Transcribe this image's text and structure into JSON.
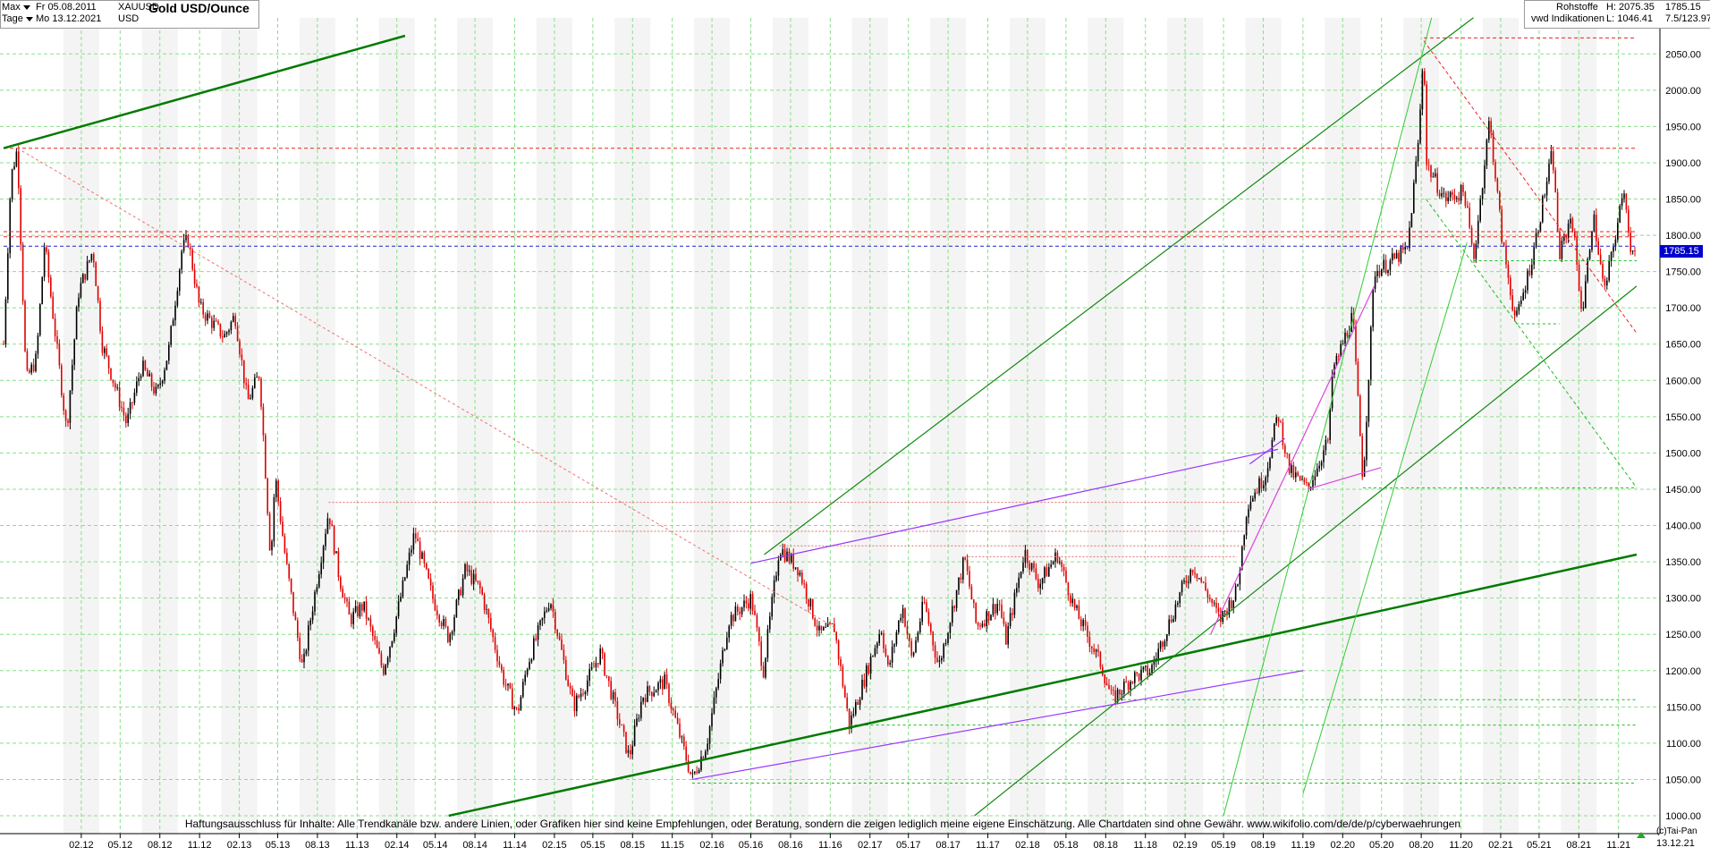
{
  "header": {
    "range_label": "Max",
    "range_from": "Fr 05.08.2011",
    "period_label": "Tage",
    "range_to": "Mo 13.12.2021",
    "symbol": "XAUUSD",
    "currency": "USD",
    "title": "Gold USD/Ounce",
    "category": "Rohstoffe",
    "source": "vwd Indikationen",
    "high": "H: 2075.35",
    "low": "L: 1046.41",
    "last": "1785.15",
    "scale_info": "7.5/123.97",
    "last_tag": "1785.15",
    "end_date": "13.12.21",
    "copyright": "(c)Tai-Pan"
  },
  "disclaimer": "Haftungsausschluss für Inhalte: Alle Trendkanäle bzw. andere Linien, oder Grafiken hier sind keine Empfehlungen, oder Beratung, sondern die zeigen lediglich meine eigene Einschätzung. Alle Chartdaten sind ohne Gewähr.  www.wikifolio.com/de/de/p/cyberwaehrungen",
  "colors": {
    "up_candle": "#000000",
    "down_candle": "#e00000",
    "thick_trendline": "#007a00",
    "thin_trendline": "#118811",
    "light_trendline": "#33cc33",
    "purple": "#9933ff",
    "magenta": "#dd44dd",
    "red_dashed": "#ee2222",
    "blue_dashed": "#2222cc",
    "green_dashed": "#22bb22",
    "grid": "#88e088",
    "band": "#f4f4f4"
  },
  "chart_data": {
    "type": "candlestick",
    "title": "Gold USD/Ounce",
    "ylim": [
      1000,
      2080
    ],
    "y_ticks": [
      "1000.00",
      "1050.00",
      "1100.00",
      "1150.00",
      "1200.00",
      "1250.00",
      "1300.00",
      "1350.00",
      "1400.00",
      "1450.00",
      "1500.00",
      "1550.00",
      "1600.00",
      "1650.00",
      "1700.00",
      "1750.00",
      "1800.00",
      "1850.00",
      "1900.00",
      "1950.00",
      "2000.00",
      "2050.00"
    ],
    "x_ticks": [
      "02.12",
      "05.12",
      "08.12",
      "11.12",
      "02.13",
      "05.13",
      "08.13",
      "11.13",
      "02.14",
      "05.14",
      "08.14",
      "11.14",
      "02.15",
      "05.15",
      "08.15",
      "11.15",
      "02.16",
      "05.16",
      "08.16",
      "11.16",
      "02.17",
      "05.17",
      "08.17",
      "11.17",
      "02.18",
      "05.18",
      "08.18",
      "11.18",
      "02.19",
      "05.19",
      "08.19",
      "11.19",
      "02.20",
      "05.20",
      "08.20",
      "11.20",
      "02.21",
      "05.21",
      "08.21",
      "11.21"
    ],
    "x_tick_dates": [
      "2012-02",
      "2012-05",
      "2012-08",
      "2012-11",
      "2013-02",
      "2013-05",
      "2013-08",
      "2013-11",
      "2014-02",
      "2014-05",
      "2014-08",
      "2014-11",
      "2015-02",
      "2015-05",
      "2015-08",
      "2015-11",
      "2016-02",
      "2016-05",
      "2016-08",
      "2016-11",
      "2017-02",
      "2017-05",
      "2017-08",
      "2017-11",
      "2018-02",
      "2018-05",
      "2018-08",
      "2018-11",
      "2019-02",
      "2019-05",
      "2019-08",
      "2019-11",
      "2020-02",
      "2020-05",
      "2020-08",
      "2020-11",
      "2021-02",
      "2021-05",
      "2021-08",
      "2021-11"
    ],
    "date_range": [
      "2011-08-05",
      "2021-12-13"
    ],
    "price_path": [
      [
        "2011-08-05",
        1650
      ],
      [
        "2011-08-22",
        1880
      ],
      [
        "2011-09-06",
        1920
      ],
      [
        "2011-09-26",
        1600
      ],
      [
        "2011-10-20",
        1630
      ],
      [
        "2011-11-08",
        1790
      ],
      [
        "2011-12-29",
        1530
      ],
      [
        "2012-01-25",
        1720
      ],
      [
        "2012-02-28",
        1780
      ],
      [
        "2012-03-20",
        1650
      ],
      [
        "2012-05-16",
        1540
      ],
      [
        "2012-06-20",
        1620
      ],
      [
        "2012-07-25",
        1580
      ],
      [
        "2012-08-21",
        1640
      ],
      [
        "2012-09-21",
        1780
      ],
      [
        "2012-10-05",
        1795
      ],
      [
        "2012-11-01",
        1700
      ],
      [
        "2012-12-28",
        1660
      ],
      [
        "2013-01-22",
        1690
      ],
      [
        "2013-02-20",
        1570
      ],
      [
        "2013-03-20",
        1610
      ],
      [
        "2013-04-15",
        1350
      ],
      [
        "2013-04-25",
        1470
      ],
      [
        "2013-05-20",
        1350
      ],
      [
        "2013-06-28",
        1200
      ],
      [
        "2013-07-10",
        1250
      ],
      [
        "2013-08-27",
        1420
      ],
      [
        "2013-09-20",
        1330
      ],
      [
        "2013-10-15",
        1270
      ],
      [
        "2013-11-15",
        1290
      ],
      [
        "2013-12-31",
        1200
      ],
      [
        "2014-01-22",
        1250
      ],
      [
        "2014-03-14",
        1390
      ],
      [
        "2014-04-25",
        1300
      ],
      [
        "2014-06-01",
        1245
      ],
      [
        "2014-07-10",
        1340
      ],
      [
        "2014-08-15",
        1310
      ],
      [
        "2014-10-05",
        1190
      ],
      [
        "2014-11-07",
        1140
      ],
      [
        "2014-12-01",
        1210
      ],
      [
        "2015-01-22",
        1300
      ],
      [
        "2015-03-17",
        1150
      ],
      [
        "2015-04-30",
        1200
      ],
      [
        "2015-05-18",
        1225
      ],
      [
        "2015-07-24",
        1080
      ],
      [
        "2015-08-24",
        1165
      ],
      [
        "2015-10-14",
        1185
      ],
      [
        "2015-12-17",
        1050
      ],
      [
        "2016-01-20",
        1100
      ],
      [
        "2016-03-11",
        1270
      ],
      [
        "2016-05-02",
        1300
      ],
      [
        "2016-05-30",
        1200
      ],
      [
        "2016-07-06",
        1370
      ],
      [
        "2016-08-20",
        1340
      ],
      [
        "2016-10-07",
        1250
      ],
      [
        "2016-11-10",
        1260
      ],
      [
        "2016-12-15",
        1125
      ],
      [
        "2017-02-27",
        1260
      ],
      [
        "2017-03-15",
        1200
      ],
      [
        "2017-04-17",
        1290
      ],
      [
        "2017-05-09",
        1215
      ],
      [
        "2017-06-06",
        1295
      ],
      [
        "2017-07-10",
        1205
      ],
      [
        "2017-09-08",
        1355
      ],
      [
        "2017-10-06",
        1260
      ],
      [
        "2017-11-27",
        1295
      ],
      [
        "2017-12-12",
        1240
      ],
      [
        "2018-01-25",
        1365
      ],
      [
        "2018-02-27",
        1320
      ],
      [
        "2018-04-11",
        1360
      ],
      [
        "2018-05-21",
        1285
      ],
      [
        "2018-07-20",
        1210
      ],
      [
        "2018-08-16",
        1160
      ],
      [
        "2018-10-01",
        1190
      ],
      [
        "2018-11-13",
        1200
      ],
      [
        "2019-01-30",
        1320
      ],
      [
        "2019-02-20",
        1345
      ],
      [
        "2019-04-23",
        1270
      ],
      [
        "2019-06-01",
        1310
      ],
      [
        "2019-06-25",
        1430
      ],
      [
        "2019-08-06",
        1470
      ],
      [
        "2019-09-04",
        1555
      ],
      [
        "2019-10-01",
        1475
      ],
      [
        "2019-11-12",
        1450
      ],
      [
        "2019-12-31",
        1520
      ],
      [
        "2020-01-08",
        1610
      ],
      [
        "2020-02-24",
        1690
      ],
      [
        "2020-03-19",
        1460
      ],
      [
        "2020-04-14",
        1750
      ],
      [
        "2020-05-15",
        1760
      ],
      [
        "2020-06-30",
        1780
      ],
      [
        "2020-07-27",
        1940
      ],
      [
        "2020-08-07",
        2070
      ],
      [
        "2020-08-12",
        1900
      ],
      [
        "2020-09-24",
        1850
      ],
      [
        "2020-11-09",
        1860
      ],
      [
        "2020-11-30",
        1765
      ],
      [
        "2021-01-06",
        1960
      ],
      [
        "2021-02-05",
        1790
      ],
      [
        "2021-03-08",
        1680
      ],
      [
        "2021-04-15",
        1770
      ],
      [
        "2021-06-01",
        1915
      ],
      [
        "2021-06-17",
        1770
      ],
      [
        "2021-07-15",
        1830
      ],
      [
        "2021-08-09",
        1690
      ],
      [
        "2021-09-03",
        1830
      ],
      [
        "2021-09-29",
        1720
      ],
      [
        "2021-11-16",
        1870
      ],
      [
        "2021-11-26",
        1785
      ],
      [
        "2021-12-13",
        1785.15
      ]
    ],
    "last_value": 1785.15
  }
}
